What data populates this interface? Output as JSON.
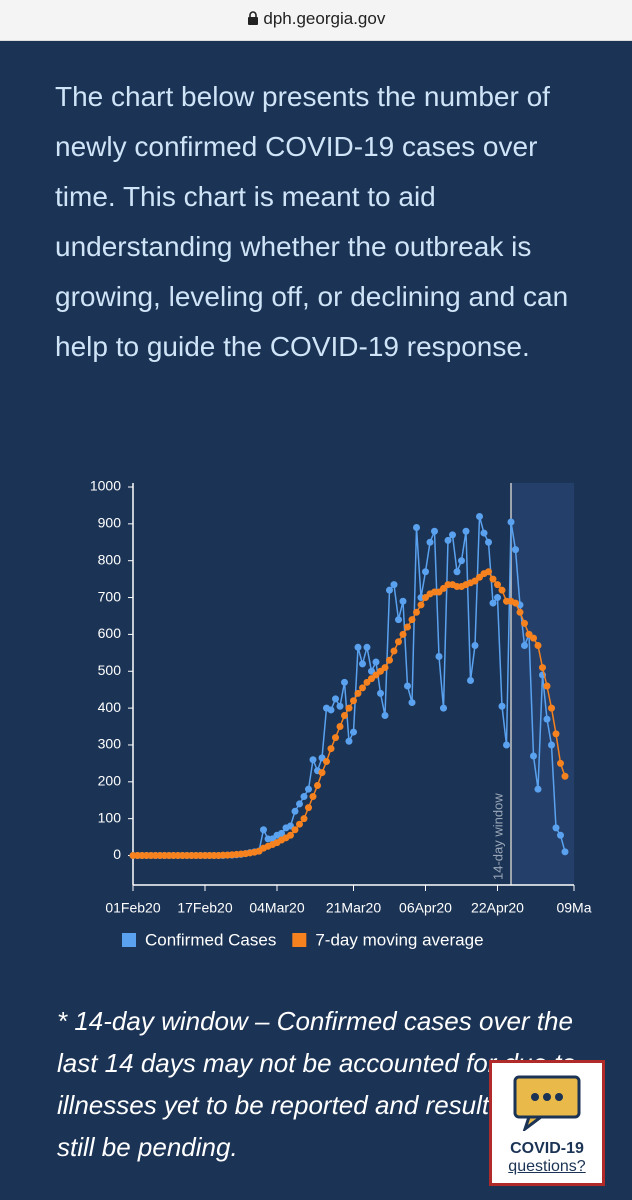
{
  "page": {
    "url": "dph.georgia.gov",
    "paragraph": "The chart below presents the number of newly confirmed COVID-19 cases over time. This chart is meant to aid understanding whether the outbreak is growing, leveling off, or declining and can help to guide the COVID-19 response.",
    "footnote": "* 14-day window – Confirmed cases over the last 14 days may not be accounted for due to illnesses yet to be reported and results may still be pending.",
    "widget": {
      "title": "COVID-19",
      "link": "questions?"
    }
  },
  "chart_data": {
    "type": "line",
    "x": [
      "2020-02-01",
      "2020-02-02",
      "2020-02-03",
      "2020-02-04",
      "2020-02-05",
      "2020-02-06",
      "2020-02-07",
      "2020-02-08",
      "2020-02-09",
      "2020-02-10",
      "2020-02-11",
      "2020-02-12",
      "2020-02-13",
      "2020-02-14",
      "2020-02-15",
      "2020-02-16",
      "2020-02-17",
      "2020-02-18",
      "2020-02-19",
      "2020-02-20",
      "2020-02-21",
      "2020-02-22",
      "2020-02-23",
      "2020-02-24",
      "2020-02-25",
      "2020-02-26",
      "2020-02-27",
      "2020-02-28",
      "2020-02-29",
      "2020-03-01",
      "2020-03-02",
      "2020-03-03",
      "2020-03-04",
      "2020-03-05",
      "2020-03-06",
      "2020-03-07",
      "2020-03-08",
      "2020-03-09",
      "2020-03-10",
      "2020-03-11",
      "2020-03-12",
      "2020-03-13",
      "2020-03-14",
      "2020-03-15",
      "2020-03-16",
      "2020-03-17",
      "2020-03-18",
      "2020-03-19",
      "2020-03-20",
      "2020-03-21",
      "2020-03-22",
      "2020-03-23",
      "2020-03-24",
      "2020-03-25",
      "2020-03-26",
      "2020-03-27",
      "2020-03-28",
      "2020-03-29",
      "2020-03-30",
      "2020-03-31",
      "2020-04-01",
      "2020-04-02",
      "2020-04-03",
      "2020-04-04",
      "2020-04-05",
      "2020-04-06",
      "2020-04-07",
      "2020-04-08",
      "2020-04-09",
      "2020-04-10",
      "2020-04-11",
      "2020-04-12",
      "2020-04-13",
      "2020-04-14",
      "2020-04-15",
      "2020-04-16",
      "2020-04-17",
      "2020-04-18",
      "2020-04-19",
      "2020-04-20",
      "2020-04-21",
      "2020-04-22",
      "2020-04-23",
      "2020-04-24",
      "2020-04-25",
      "2020-04-26",
      "2020-04-27",
      "2020-04-28",
      "2020-04-29",
      "2020-04-30",
      "2020-05-01",
      "2020-05-02",
      "2020-05-03",
      "2020-05-04",
      "2020-05-05",
      "2020-05-06",
      "2020-05-07"
    ],
    "series": [
      {
        "name": "Confirmed Cases",
        "color": "#5aa2f0",
        "values": [
          0,
          0,
          0,
          0,
          0,
          0,
          0,
          0,
          0,
          0,
          0,
          0,
          0,
          0,
          0,
          0,
          0,
          0,
          0,
          0,
          0,
          1,
          1,
          2,
          3,
          5,
          8,
          10,
          12,
          70,
          45,
          45,
          55,
          60,
          75,
          80,
          120,
          140,
          160,
          180,
          260,
          230,
          265,
          400,
          395,
          425,
          405,
          470,
          310,
          335,
          565,
          520,
          565,
          500,
          525,
          440,
          380,
          720,
          735,
          640,
          690,
          460,
          415,
          890,
          700,
          770,
          850,
          880,
          540,
          400,
          855,
          870,
          770,
          800,
          880,
          475,
          570,
          920,
          875,
          850,
          685,
          700,
          405,
          300,
          905,
          830,
          680,
          570,
          600,
          270,
          180,
          490,
          370,
          300,
          75,
          55,
          10
        ]
      },
      {
        "name": "7-day moving average",
        "color": "#f5821f",
        "values": [
          0,
          0,
          0,
          0,
          0,
          0,
          0,
          0,
          0,
          0,
          0,
          0,
          0,
          0,
          0,
          0,
          0,
          0,
          0,
          0,
          1,
          1,
          2,
          3,
          4,
          5,
          7,
          9,
          12,
          20,
          25,
          30,
          35,
          42,
          48,
          55,
          70,
          85,
          100,
          130,
          160,
          190,
          225,
          255,
          290,
          320,
          350,
          380,
          400,
          420,
          440,
          455,
          470,
          480,
          490,
          500,
          510,
          530,
          555,
          580,
          600,
          620,
          640,
          660,
          680,
          700,
          710,
          715,
          715,
          725,
          735,
          735,
          730,
          730,
          735,
          740,
          745,
          755,
          765,
          770,
          750,
          735,
          720,
          690,
          690,
          685,
          660,
          630,
          600,
          590,
          570,
          510,
          460,
          400,
          330,
          250,
          215
        ]
      }
    ],
    "xlim": [
      "2020-02-01",
      "2020-05-09"
    ],
    "xticks": [
      {
        "value": "2020-02-01",
        "label": "01Feb20"
      },
      {
        "value": "2020-02-17",
        "label": "17Feb20"
      },
      {
        "value": "2020-03-04",
        "label": "04Mar20"
      },
      {
        "value": "2020-03-21",
        "label": "21Mar20"
      },
      {
        "value": "2020-04-06",
        "label": "06Apr20"
      },
      {
        "value": "2020-04-22",
        "label": "22Apr20"
      },
      {
        "value": "2020-05-09",
        "label": "09Ma"
      }
    ],
    "ylim": [
      -80,
      1000
    ],
    "yticks": [
      0,
      100,
      200,
      300,
      400,
      500,
      600,
      700,
      800,
      900,
      1000
    ],
    "window": {
      "label": "14-day window",
      "start": "2020-04-25"
    },
    "legend": "bottom"
  }
}
